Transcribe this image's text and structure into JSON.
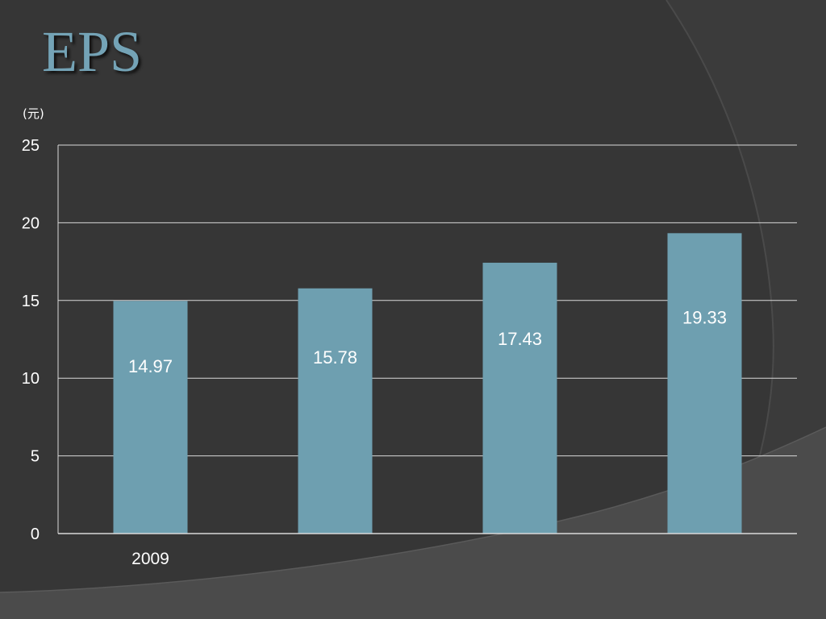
{
  "slide": {
    "title": "EPS",
    "unit_label": "(元)"
  },
  "colors": {
    "background": "#3b3b3b",
    "bar": "#6e9fb0",
    "title": "#74a3b6",
    "gridline": "#d9d9d9",
    "text": "#ffffff"
  },
  "chart_data": {
    "type": "bar",
    "title": "",
    "xlabel": "",
    "ylabel": "(元)",
    "categories": [
      "2009",
      "",
      "",
      ""
    ],
    "values": [
      14.97,
      15.78,
      17.43,
      19.33
    ],
    "data_labels": [
      "14.97",
      "15.78",
      "17.43",
      "19.33"
    ],
    "ylim": [
      0,
      25
    ],
    "yticks": [
      0,
      5,
      10,
      15,
      20,
      25
    ],
    "grid": true,
    "legend": "none"
  }
}
